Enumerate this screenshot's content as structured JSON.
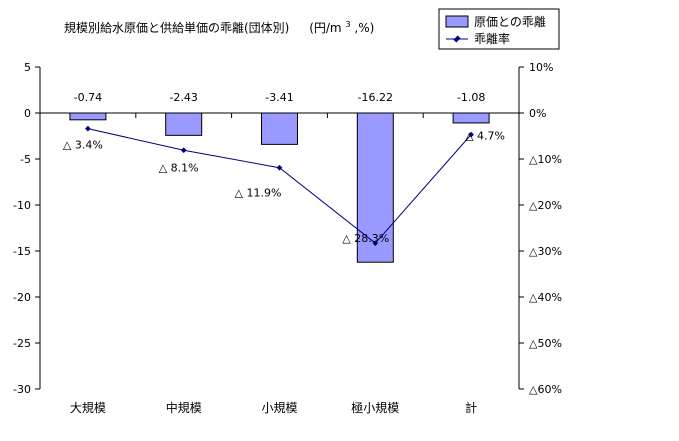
{
  "chart_data": {
    "type": "bar+line",
    "title": "規模別給水原価と供給単価の乖離(団体別)　(円/m³,%)",
    "title_main": "規模別給水原価と供給単価の乖離(団体別)",
    "title_unit": "(円/m",
    "title_sup": "3",
    "title_unit_tail": ",%)",
    "categories": [
      "大規模",
      "中規模",
      "小規模",
      "極小規模",
      "計"
    ],
    "series": [
      {
        "name": "原価との乖離",
        "type": "bar",
        "axis": "left",
        "color": "#9999ff",
        "values": [
          -0.74,
          -2.43,
          -3.41,
          -16.22,
          -1.08
        ],
        "labels": [
          "-0.74",
          "-2.43",
          "-3.41",
          "-16.22",
          "-1.08"
        ]
      },
      {
        "name": "乖離率",
        "type": "line",
        "axis": "right",
        "color": "#000080",
        "values": [
          -3.4,
          -8.1,
          -11.9,
          -28.3,
          -4.7
        ],
        "labels": [
          "△ 3.4%",
          "△ 8.1%",
          "△ 11.9%",
          "△ 28.3%",
          "△ 4.7%"
        ]
      }
    ],
    "y_left": {
      "ylim": [
        -30,
        5
      ],
      "ticks": [
        5,
        0,
        -5,
        -10,
        -15,
        -20,
        -25,
        -30
      ],
      "tick_labels": [
        "5",
        "0",
        "-5",
        "-10",
        "-15",
        "-20",
        "-25",
        "-30"
      ]
    },
    "y_right": {
      "ylim": [
        -60,
        10
      ],
      "ticks": [
        10,
        0,
        -10,
        -20,
        -30,
        -40,
        -50,
        -60
      ],
      "tick_labels": [
        "10%",
        "0%",
        "△10%",
        "△20%",
        "△30%",
        "△40%",
        "△50%",
        "△60%"
      ]
    },
    "grid": false,
    "legend": {
      "position": "top-right"
    }
  }
}
